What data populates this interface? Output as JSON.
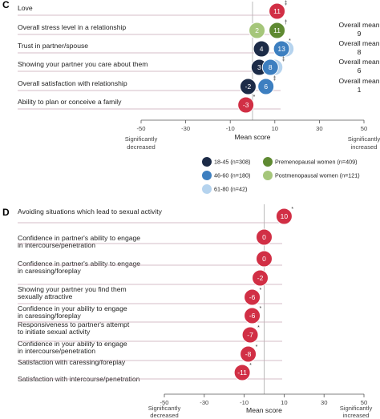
{
  "colors": {
    "age_18_45": "#1c2b47",
    "age_46_60": "#3d7fc0",
    "age_61_80": "#b5d3ee",
    "premenopausal": "#5f8a32",
    "postmenopausal": "#a5c67a",
    "panel_d": "#d12f45",
    "row_line": "#c9a9b4",
    "zero_line": "#bbbbbb"
  },
  "chart_data": [
    {
      "panel": "C",
      "type": "scatter",
      "xlabel": "Mean score",
      "x_ticks": [
        -50,
        -30,
        -10,
        10,
        30,
        50
      ],
      "xlim": [
        -50,
        50
      ],
      "x_end_labels": {
        "left": [
          "Significantly",
          "decreased"
        ],
        "right": [
          "Significantly",
          "increased"
        ]
      },
      "categories": [
        "Love",
        "Overall stress level in a relationship",
        "Trust in partner/spouse",
        "Showing your partner you care about them",
        "Overall satisfaction with relationship",
        "Ability to plan or conceive a family"
      ],
      "overall_mean_label": "Overall mean",
      "overall_means": [
        null,
        9,
        8,
        6,
        1,
        null
      ],
      "legend": [
        {
          "name": "18-45 (n=308)",
          "color": "#1c2b47"
        },
        {
          "name": "46-60 (n=180)",
          "color": "#3d7fc0"
        },
        {
          "name": "61-80 (n=42)",
          "color": "#b5d3ee"
        },
        {
          "name": "Premenopausal women (n=409)",
          "color": "#5f8a32"
        },
        {
          "name": "Postmenopausal women (n=121)",
          "color": "#a5c67a"
        }
      ],
      "points": [
        {
          "row": 0,
          "x": 11,
          "label": "11",
          "color": "#d12f45",
          "mark": "‡"
        },
        {
          "row": 1,
          "x": 2,
          "label": "2",
          "color": "#a5c67a",
          "mark": ""
        },
        {
          "row": 1,
          "x": 11,
          "label": "11",
          "color": "#5f8a32",
          "mark": "†"
        },
        {
          "row": 2,
          "x": 4,
          "label": "4",
          "color": "#1c2b47",
          "mark": ""
        },
        {
          "row": 2,
          "x": 15,
          "label": "15",
          "color": "#b5d3ee",
          "mark": ""
        },
        {
          "row": 2,
          "x": 13,
          "label": "13",
          "color": "#3d7fc0",
          "mark": "*"
        },
        {
          "row": 3,
          "x": 3,
          "label": "3",
          "color": "#1c2b47",
          "mark": ""
        },
        {
          "row": 3,
          "x": 10,
          "label": "10",
          "color": "#b5d3ee",
          "mark": "‡"
        },
        {
          "row": 3,
          "x": 8,
          "label": "8",
          "color": "#3d7fc0",
          "mark": ""
        },
        {
          "row": 4,
          "x": -2,
          "label": "-2",
          "color": "#1c2b47",
          "mark": ""
        },
        {
          "row": 4,
          "x": 6,
          "label": "6",
          "color": "#3d7fc0",
          "mark": "‡"
        },
        {
          "row": 5,
          "x": -3,
          "label": "-3",
          "color": "#d12f45",
          "mark": "*"
        }
      ]
    },
    {
      "panel": "D",
      "type": "scatter",
      "xlabel": "Mean score",
      "x_ticks": [
        -50,
        -30,
        -10,
        10,
        30,
        50
      ],
      "xlim": [
        -50,
        50
      ],
      "x_end_labels": {
        "left": [
          "Significantly",
          "decreased"
        ],
        "right": [
          "Significantly",
          "increased"
        ]
      },
      "categories": [
        [
          "Avoiding situations which lead to sexual activity"
        ],
        [
          "Confidence in partner's ability to engage",
          "in intercourse/penetration"
        ],
        [
          "Confidence in partner's ability to engage",
          "in caressing/foreplay"
        ],
        [
          "Showing your partner you find them",
          "sexually attractive"
        ],
        [
          "Confidence in your ability to engage",
          "in caressing/foreplay"
        ],
        [
          "Responsiveness to partner's attempt",
          "to initiate sexual activity"
        ],
        [
          "Confidence in your ability to engage",
          "in intercourse/penetration"
        ],
        [
          "Satisfaction with caressing/foreplay"
        ],
        [
          "Satisfaction with intercourse/penetration"
        ]
      ],
      "values": [
        10,
        0,
        0,
        -2,
        -6,
        -6,
        -7,
        -8,
        -11
      ],
      "value_labels": [
        "10",
        "0",
        "0",
        "-2",
        "-6",
        "-6",
        "-7",
        "-8",
        "-11"
      ],
      "marks": [
        "*",
        "",
        "",
        "",
        "*",
        "*",
        "*",
        "*",
        "*"
      ]
    }
  ]
}
